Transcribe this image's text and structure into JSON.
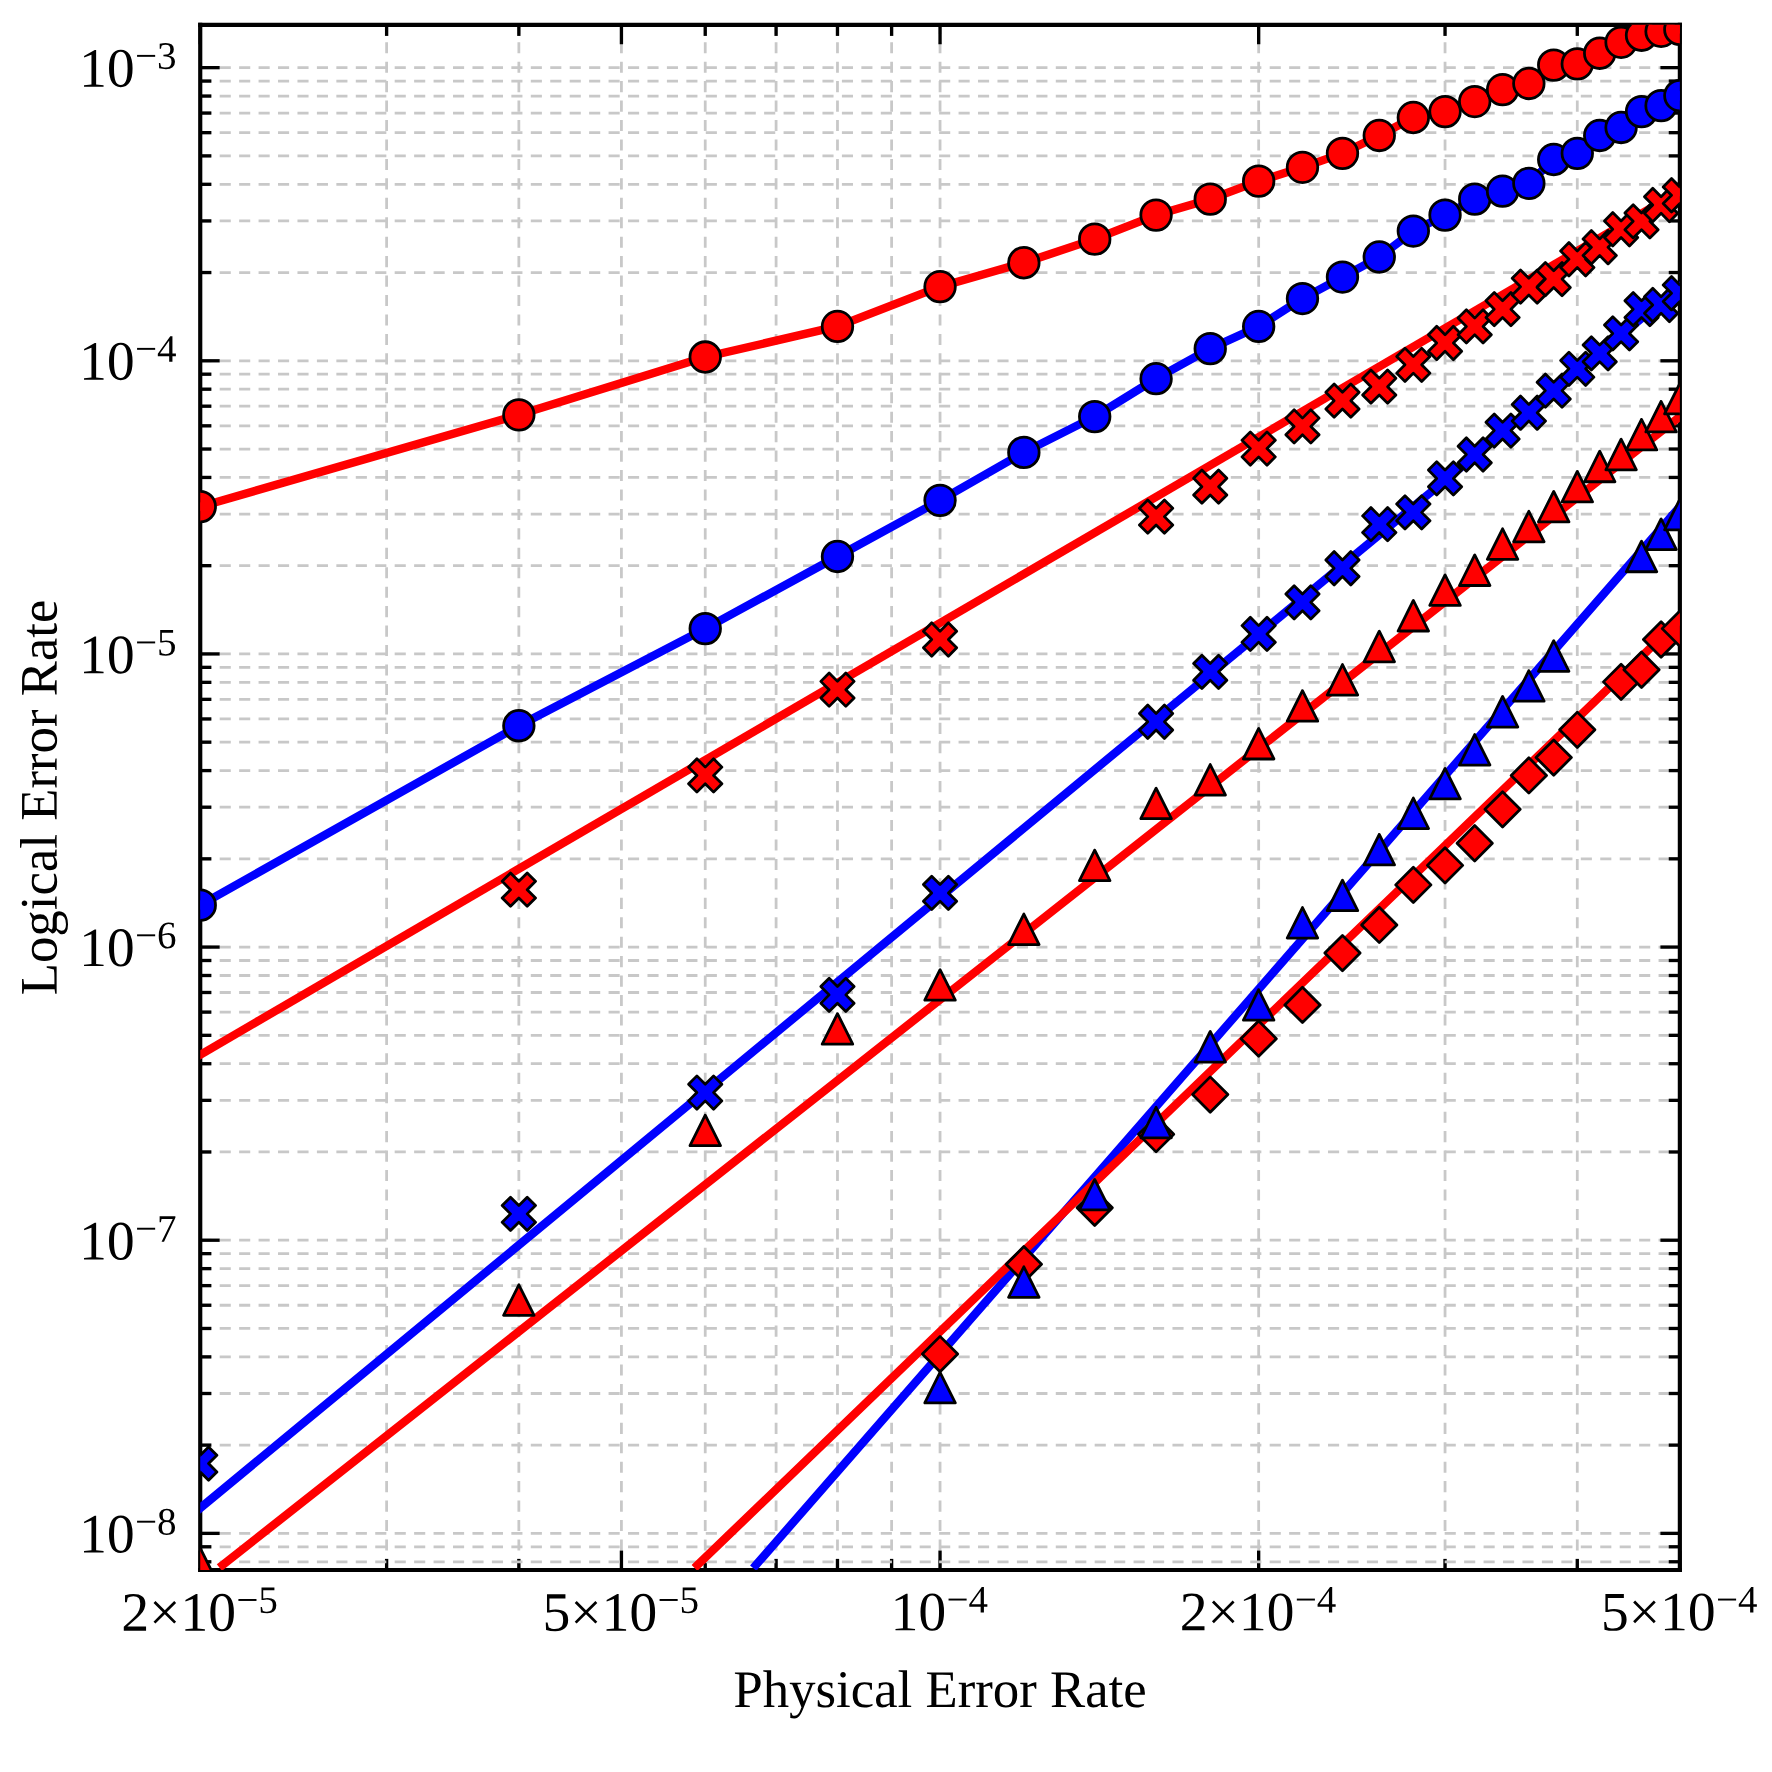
{
  "chart_data": {
    "type": "scatter",
    "xlabel": "Physical Error Rate",
    "ylabel": "Logical Error Rate",
    "log": "xy",
    "grid": true,
    "xlim": [
      2e-05,
      0.0005
    ],
    "ylim": [
      7.5e-09,
      0.0014
    ],
    "xticks": [
      {
        "value": 2e-05,
        "label": "2×10$^{−5}$"
      },
      {
        "value": 3e-05,
        "label": null
      },
      {
        "value": 4e-05,
        "label": null
      },
      {
        "value": 5e-05,
        "label": "5×10$^{−5}$"
      },
      {
        "value": 6e-05,
        "label": null
      },
      {
        "value": 7e-05,
        "label": null
      },
      {
        "value": 8e-05,
        "label": null
      },
      {
        "value": 9e-05,
        "label": null
      },
      {
        "value": 0.0001,
        "label": "10$^{−4}$"
      },
      {
        "value": 0.0002,
        "label": "2×10$^{−4}$"
      },
      {
        "value": 0.0003,
        "label": null
      },
      {
        "value": 0.0004,
        "label": null
      },
      {
        "value": 0.0005,
        "label": "5×10$^{−4}$"
      }
    ],
    "yticks": [
      {
        "value": 8e-09,
        "label": null
      },
      {
        "value": 9e-09,
        "label": null
      },
      {
        "value": 1e-08,
        "label": "10$^{−8}$"
      },
      {
        "value": 2e-08,
        "label": null
      },
      {
        "value": 3e-08,
        "label": null
      },
      {
        "value": 4e-08,
        "label": null
      },
      {
        "value": 5e-08,
        "label": null
      },
      {
        "value": 6e-08,
        "label": null
      },
      {
        "value": 7e-08,
        "label": null
      },
      {
        "value": 8e-08,
        "label": null
      },
      {
        "value": 9e-08,
        "label": null
      },
      {
        "value": 1e-07,
        "label": "10$^{−7}$"
      },
      {
        "value": 2e-07,
        "label": null
      },
      {
        "value": 3e-07,
        "label": null
      },
      {
        "value": 4e-07,
        "label": null
      },
      {
        "value": 5e-07,
        "label": null
      },
      {
        "value": 6e-07,
        "label": null
      },
      {
        "value": 7e-07,
        "label": null
      },
      {
        "value": 8e-07,
        "label": null
      },
      {
        "value": 9e-07,
        "label": null
      },
      {
        "value": 1e-06,
        "label": "10$^{−6}$"
      },
      {
        "value": 2e-06,
        "label": null
      },
      {
        "value": 3e-06,
        "label": null
      },
      {
        "value": 4e-06,
        "label": null
      },
      {
        "value": 5e-06,
        "label": null
      },
      {
        "value": 6e-06,
        "label": null
      },
      {
        "value": 7e-06,
        "label": null
      },
      {
        "value": 8e-06,
        "label": null
      },
      {
        "value": 9e-06,
        "label": null
      },
      {
        "value": 1e-05,
        "label": "10$^{−5}$"
      },
      {
        "value": 2e-05,
        "label": null
      },
      {
        "value": 3e-05,
        "label": null
      },
      {
        "value": 4e-05,
        "label": null
      },
      {
        "value": 5e-05,
        "label": null
      },
      {
        "value": 6e-05,
        "label": null
      },
      {
        "value": 7e-05,
        "label": null
      },
      {
        "value": 8e-05,
        "label": null
      },
      {
        "value": 9e-05,
        "label": null
      },
      {
        "value": 0.0001,
        "label": "10$^{−4}$"
      },
      {
        "value": 0.0002,
        "label": null
      },
      {
        "value": 0.0003,
        "label": null
      },
      {
        "value": 0.0004,
        "label": null
      },
      {
        "value": 0.0005,
        "label": null
      },
      {
        "value": 0.0006,
        "label": null
      },
      {
        "value": 0.0007,
        "label": null
      },
      {
        "value": 0.0008,
        "label": null
      },
      {
        "value": 0.0009,
        "label": null
      },
      {
        "value": 0.001,
        "label": "10$^{−3}$"
      }
    ],
    "series": [
      {
        "type": "line",
        "marker": "circle",
        "color": "#ff0000",
        "x": [
          2e-05,
          4e-05,
          6e-05,
          8e-05,
          0.0001,
          0.00012,
          0.00014,
          0.00016,
          0.00018,
          0.0002,
          0.00022,
          0.00024,
          0.00026,
          0.00028,
          0.0003,
          0.00032,
          0.00034,
          0.00036,
          0.00038,
          0.0004,
          0.00042,
          0.00044,
          0.00046,
          0.00048,
          0.0005
        ],
        "values": [
          3.18e-05,
          6.54e-05,
          0.000103,
          0.000131,
          0.000179,
          0.000216,
          0.00026,
          0.000314,
          0.000356,
          0.00041,
          0.000457,
          0.00051,
          0.000587,
          0.000676,
          0.000708,
          0.000766,
          0.000841,
          0.000883,
          0.00102,
          0.00103,
          0.00112,
          0.00122,
          0.00129,
          0.00133,
          0.00135
        ]
      },
      {
        "type": "line",
        "marker": "circle",
        "color": "#0000ff",
        "x": [
          2e-05,
          4e-05,
          6e-05,
          8e-05,
          0.0001,
          0.00012,
          0.00014,
          0.00016,
          0.00018,
          0.0002,
          0.00022,
          0.00024,
          0.00026,
          0.00028,
          0.0003,
          0.00032,
          0.00034,
          0.00036,
          0.00038,
          0.0004,
          0.00042,
          0.00044,
          0.00046,
          0.00048,
          0.0005
        ],
        "values": [
          1.39e-06,
          5.69e-06,
          1.22e-05,
          2.15e-05,
          3.34e-05,
          4.87e-05,
          6.45e-05,
          8.69e-05,
          0.00011,
          0.000131,
          0.000163,
          0.000193,
          0.000226,
          0.000277,
          0.000314,
          0.000356,
          0.000379,
          0.000403,
          0.000486,
          0.00051,
          0.000587,
          0.000625,
          0.000708,
          0.000742,
          0.000803
        ]
      },
      {
        "type": "line",
        "marker": "none",
        "color": "#ff0000",
        "x": [
          2e-05,
          0.0005
        ],
        "values": [
          4.29e-07,
          0.000379
        ]
      },
      {
        "type": "scatter",
        "marker": "cross",
        "color": "#ff0000",
        "x": [
          4e-05,
          6e-05,
          8e-05,
          0.0001,
          0.00016,
          0.00018,
          0.0002,
          0.00022,
          0.00024,
          0.00026,
          0.00028,
          0.0003,
          0.00032,
          0.00034,
          0.00036,
          0.00038,
          0.0004,
          0.00042,
          0.00044,
          0.00046,
          0.00048,
          0.0005
        ],
        "values": [
          1.57e-06,
          3.85e-06,
          7.55e-06,
          1.12e-05,
          2.94e-05,
          3.72e-05,
          5.02e-05,
          5.97e-05,
          7.31e-05,
          8.16e-05,
          9.69e-05,
          0.000115,
          0.000131,
          0.00015,
          0.000179,
          0.00019,
          0.000222,
          0.000244,
          0.000281,
          0.000299,
          0.00034,
          0.000367
        ]
      },
      {
        "type": "line",
        "marker": "none",
        "color": "#0000ff",
        "x": [
          2e-05,
          0.0005
        ],
        "values": [
          1.22e-08,
          0.000179
        ]
      },
      {
        "type": "scatter",
        "marker": "cross",
        "color": "#0000ff",
        "x": [
          2e-05,
          4e-05,
          6e-05,
          8e-05,
          0.0001,
          0.00016,
          0.00018,
          0.0002,
          0.00022,
          0.00024,
          0.00026,
          0.00028,
          0.0003,
          0.00032,
          0.00034,
          0.00036,
          0.00038,
          0.0004,
          0.00042,
          0.00044,
          0.00046,
          0.00048,
          0.0005
        ],
        "values": [
          1.73e-08,
          1.23e-07,
          3.19e-07,
          6.87e-07,
          1.53e-06,
          5.87e-06,
          8.69e-06,
          1.17e-05,
          1.5e-05,
          1.96e-05,
          2.77e-05,
          3.04e-05,
          3.97e-05,
          4.79e-05,
          5.78e-05,
          6.65e-05,
          7.91e-05,
          9.39e-05,
          0.000106,
          0.000124,
          0.00015,
          0.000155,
          0.00017
        ]
      },
      {
        "type": "line",
        "marker": "none",
        "color": "#ff0000",
        "x": [
          2.1e-05,
          0.0005
        ],
        "values": [
          7.8e-09,
          6.45e-05
        ]
      },
      {
        "type": "scatter",
        "marker": "triangle",
        "color": "#ff0000",
        "x": [
          2e-05,
          4e-05,
          6e-05,
          8e-05,
          0.0001,
          0.00012,
          0.00014,
          0.00016,
          0.00018,
          0.0002,
          0.00022,
          0.00024,
          0.00026,
          0.00028,
          0.0003,
          0.00032,
          0.00034,
          0.00036,
          0.00038,
          0.0004,
          0.00042,
          0.00044,
          0.00046,
          0.00048,
          0.0005
        ],
        "values": [
          7.9e-09,
          6.25e-08,
          2.37e-07,
          5.26e-07,
          7.43e-07,
          1.15e-06,
          1.9e-06,
          3.09e-06,
          3.72e-06,
          4.94e-06,
          6.65e-06,
          8.16e-06,
          1.06e-05,
          1.35e-05,
          1.65e-05,
          1.93e-05,
          2.37e-05,
          2.72e-05,
          3.18e-05,
          3.72e-05,
          4.36e-05,
          4.79e-05,
          5.6e-05,
          6.45e-05,
          7.43e-05
        ]
      },
      {
        "type": "line",
        "marker": "none",
        "color": "#0000ff",
        "x": [
          6.7e-05,
          0.0005
        ],
        "values": [
          7.8e-09,
          3.18e-05
        ]
      },
      {
        "type": "scatter",
        "marker": "triangle",
        "color": "#0000ff",
        "x": [
          0.0001,
          0.00012,
          0.00014,
          0.00016,
          0.00018,
          0.0002,
          0.00022,
          0.00024,
          0.00026,
          0.00028,
          0.0003,
          0.00032,
          0.00034,
          0.00036,
          0.00038,
          0.00046,
          0.00048,
          0.0005
        ],
        "values": [
          3.14e-08,
          7.2e-08,
          1.43e-07,
          2.52e-07,
          4.57e-07,
          6.35e-07,
          1.21e-06,
          1.5e-06,
          2.15e-06,
          2.86e-06,
          3.61e-06,
          4.71e-06,
          6.35e-06,
          7.78e-06,
          9.84e-06,
          2.15e-05,
          2.56e-05,
          2.99e-05
        ]
      },
      {
        "type": "line",
        "marker": "none",
        "color": "#ff0000",
        "x": [
          5.9e-05,
          0.0005
        ],
        "values": [
          7.8e-09,
          1.31e-05
        ]
      },
      {
        "type": "scatter",
        "marker": "diamond",
        "color": "#ff0000",
        "x": [
          0.0001,
          0.00012,
          0.00014,
          0.00016,
          0.00018,
          0.0002,
          0.00022,
          0.00024,
          0.00026,
          0.00028,
          0.0003,
          0.00032,
          0.00034,
          0.00036,
          0.00038,
          0.0004,
          0.00044,
          0.00046,
          0.00048,
          0.0005
        ],
        "values": [
          4.09e-08,
          8.28e-08,
          1.29e-07,
          2.3e-07,
          3.14e-07,
          4.87e-07,
          6.35e-07,
          9.54e-07,
          1.19e-06,
          1.63e-06,
          1.9e-06,
          2.26e-06,
          2.95e-06,
          3.85e-06,
          4.43e-06,
          5.51e-06,
          8.03e-06,
          8.83e-06,
          1.12e-05,
          1.22e-05
        ]
      }
    ]
  }
}
